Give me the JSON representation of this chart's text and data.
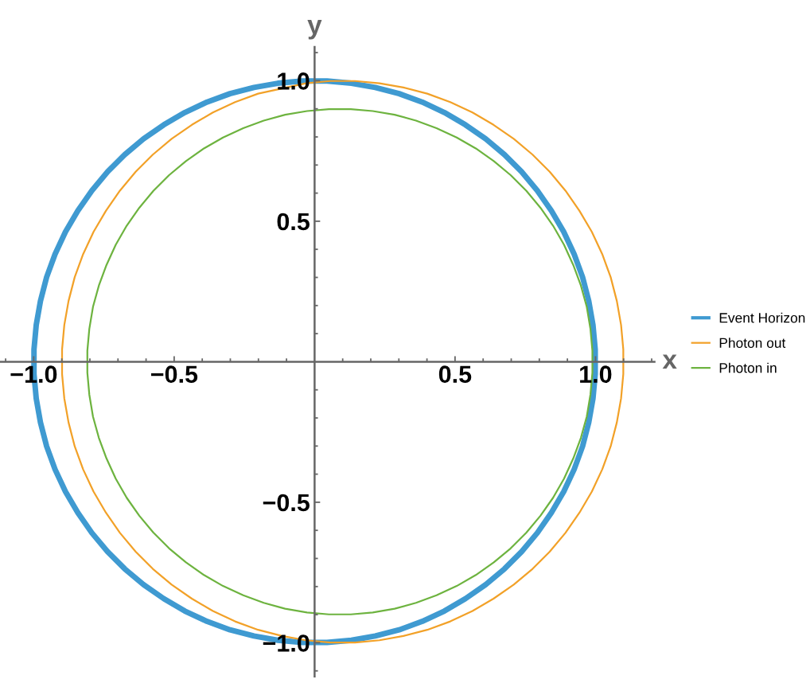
{
  "chart_data": {
    "type": "line",
    "xlabel": "x",
    "ylabel": "y",
    "xlim": [
      -1.12,
      1.21
    ],
    "ylim": [
      -1.12,
      1.12
    ],
    "xticks": [
      {
        "value": -1.1,
        "label": null
      },
      {
        "value": -1,
        "label": "−1.0"
      },
      {
        "value": -0.9,
        "label": null
      },
      {
        "value": -0.8,
        "label": null
      },
      {
        "value": -0.7,
        "label": null
      },
      {
        "value": -0.6,
        "label": null
      },
      {
        "value": -0.5,
        "label": "−0.5"
      },
      {
        "value": -0.4,
        "label": null
      },
      {
        "value": -0.3,
        "label": null
      },
      {
        "value": -0.2,
        "label": null
      },
      {
        "value": -0.1,
        "label": null
      },
      {
        "value": 0.1,
        "label": null
      },
      {
        "value": 0.2,
        "label": null
      },
      {
        "value": 0.3,
        "label": null
      },
      {
        "value": 0.4,
        "label": null
      },
      0.5,
      {
        "value": 0.6,
        "label": null
      },
      {
        "value": 0.7,
        "label": null
      },
      {
        "value": 0.8,
        "label": null
      },
      {
        "value": 0.9,
        "label": null
      },
      {
        "value": 1,
        "label": "1.0"
      },
      {
        "value": 1.1,
        "label": null
      },
      {
        "value": 1.2,
        "label": null
      }
    ],
    "yticks": [
      {
        "value": -1.1,
        "label": null
      },
      {
        "value": -1,
        "label": "−1.0"
      },
      {
        "value": -0.9,
        "label": null
      },
      {
        "value": -0.8,
        "label": null
      },
      {
        "value": -0.7,
        "label": null
      },
      {
        "value": -0.6,
        "label": null
      },
      {
        "value": -0.5,
        "label": "−0.5"
      },
      {
        "value": -0.4,
        "label": null
      },
      {
        "value": -0.3,
        "label": null
      },
      {
        "value": -0.2,
        "label": null
      },
      {
        "value": -0.1,
        "label": null
      },
      {
        "value": 0.1,
        "label": null
      },
      {
        "value": 0.2,
        "label": null
      },
      {
        "value": 0.3,
        "label": null
      },
      {
        "value": 0.4,
        "label": null
      },
      0.5,
      {
        "value": 0.6,
        "label": null
      },
      {
        "value": 0.7,
        "label": null
      },
      {
        "value": 0.8,
        "label": null
      },
      {
        "value": 0.9,
        "label": null
      },
      {
        "value": 1,
        "label": "1.0"
      },
      {
        "value": 1.1,
        "label": null
      }
    ],
    "legend": "right",
    "series": [
      {
        "name": "Event Horizon",
        "color": "#3f9ad1",
        "x": [
          0.999,
          0.991,
          0.976,
          0.954,
          0.924,
          0.887,
          0.843,
          0.793,
          0.737,
          0.676,
          0.609,
          0.537,
          0.462,
          0.383,
          0.301,
          0.216,
          0.131,
          0.044,
          -0.044,
          -0.131,
          -0.216,
          -0.301,
          -0.383,
          -0.462,
          -0.537,
          -0.609,
          -0.676,
          -0.737,
          -0.793,
          -0.843,
          -0.887,
          -0.924,
          -0.954,
          -0.976,
          -0.991,
          -0.999,
          -0.999,
          -0.991,
          -0.976,
          -0.954,
          -0.924,
          -0.887,
          -0.843,
          -0.793,
          -0.737,
          -0.676,
          -0.609,
          -0.537,
          -0.462,
          -0.383,
          -0.301,
          -0.216,
          -0.131,
          -0.044,
          0.044,
          0.131,
          0.216,
          0.301,
          0.383,
          0.462,
          0.537,
          0.609,
          0.676,
          0.737,
          0.793,
          0.843,
          0.887,
          0.924,
          0.954,
          0.976,
          0.991,
          0.999,
          0.999,
          0.991
        ],
        "values": [
          0.044,
          0.131,
          0.216,
          0.301,
          0.383,
          0.462,
          0.537,
          0.609,
          0.676,
          0.737,
          0.793,
          0.843,
          0.887,
          0.924,
          0.954,
          0.976,
          0.991,
          0.999,
          0.999,
          0.991,
          0.976,
          0.954,
          0.924,
          0.887,
          0.843,
          0.793,
          0.737,
          0.676,
          0.609,
          0.537,
          0.462,
          0.383,
          0.301,
          0.216,
          0.131,
          0.044,
          -0.044,
          -0.131,
          -0.216,
          -0.301,
          -0.383,
          -0.462,
          -0.537,
          -0.609,
          -0.676,
          -0.737,
          -0.793,
          -0.843,
          -0.887,
          -0.924,
          -0.954,
          -0.976,
          -0.991,
          -0.999,
          -0.999,
          -0.991,
          -0.976,
          -0.954,
          -0.924,
          -0.887,
          -0.843,
          -0.793,
          -0.737,
          -0.676,
          -0.609,
          -0.537,
          -0.462,
          -0.383,
          -0.301,
          -0.216,
          -0.131,
          -0.044,
          0.044,
          0.131
        ]
      },
      {
        "name": "Photon out",
        "color": "#f2a128",
        "x": [
          1.099,
          1.091,
          1.076,
          1.054,
          1.024,
          0.987,
          0.943,
          0.893,
          0.837,
          0.776,
          0.709,
          0.637,
          0.562,
          0.483,
          0.401,
          0.316,
          0.231,
          0.144,
          0.056,
          -0.031,
          -0.201,
          -0.283,
          -0.362,
          -0.437,
          -0.509,
          -0.576,
          -0.637,
          -0.693,
          -0.743,
          -0.787,
          -0.824,
          -0.854,
          -0.876,
          -0.891,
          -0.899,
          -0.899,
          -0.891,
          -0.876,
          -0.854,
          -0.824,
          -0.787,
          -0.743,
          -0.693,
          -0.637,
          -0.576,
          -0.509,
          -0.437,
          -0.362,
          -0.283,
          -0.201,
          -0.116,
          -0.031,
          0.056,
          0.144,
          0.231,
          0.316,
          0.401,
          0.483,
          0.562,
          0.637,
          0.709,
          0.776,
          0.837,
          0.893,
          0.943,
          0.987,
          1.024,
          1.054,
          1.076,
          1.091,
          1.099,
          1.099,
          1.091
        ],
        "values": [
          0.044,
          0.131,
          0.216,
          0.301,
          0.383,
          0.462,
          0.537,
          0.609,
          0.676,
          0.737,
          0.793,
          0.843,
          0.887,
          0.924,
          0.954,
          0.976,
          0.991,
          0.999,
          0.999,
          0.991,
          0.954,
          0.924,
          0.887,
          0.843,
          0.793,
          0.737,
          0.676,
          0.609,
          0.537,
          0.462,
          0.383,
          0.301,
          0.216,
          0.131,
          0.044,
          -0.044,
          -0.131,
          -0.216,
          -0.301,
          -0.383,
          -0.462,
          -0.537,
          -0.609,
          -0.676,
          -0.737,
          -0.793,
          -0.843,
          -0.887,
          -0.924,
          -0.954,
          -0.976,
          -0.991,
          -0.999,
          -0.999,
          -0.991,
          -0.976,
          -0.954,
          -0.924,
          -0.887,
          -0.843,
          -0.793,
          -0.737,
          -0.676,
          -0.609,
          -0.537,
          -0.462,
          -0.383,
          -0.301,
          -0.216,
          -0.131,
          -0.044,
          0.044,
          0.131
        ]
      },
      {
        "name": "Photon in",
        "color": "#6db33f",
        "x": [
          0.989,
          0.982,
          0.969,
          0.948,
          0.921,
          0.888,
          0.849,
          0.804,
          0.754,
          0.698,
          0.638,
          0.574,
          0.506,
          0.434,
          0.361,
          0.285,
          0.207,
          0.129,
          0.051,
          -0.027,
          -0.105,
          -0.181,
          -0.254,
          -0.326,
          -0.394,
          -0.458,
          -0.518,
          -0.574,
          -0.624,
          -0.669,
          -0.708,
          -0.741,
          -0.768,
          -0.789,
          -0.802,
          -0.809,
          -0.809,
          -0.802,
          -0.789,
          -0.768,
          -0.741,
          -0.708,
          -0.669,
          -0.624,
          -0.574,
          -0.518,
          -0.458,
          -0.394,
          -0.326,
          -0.254,
          -0.181,
          -0.105,
          -0.027,
          0.051,
          0.129,
          0.207,
          0.285,
          0.361,
          0.434,
          0.506,
          0.574,
          0.638,
          0.698,
          0.754,
          0.804,
          0.849,
          0.888,
          0.921,
          0.948,
          0.969,
          0.982,
          0.989,
          0.989,
          0.982
        ],
        "values": [
          0.039,
          0.117,
          0.195,
          0.271,
          0.344,
          0.416,
          0.484,
          0.548,
          0.608,
          0.664,
          0.714,
          0.759,
          0.798,
          0.831,
          0.858,
          0.879,
          0.892,
          0.899,
          0.899,
          0.892,
          0.879,
          0.858,
          0.831,
          0.798,
          0.759,
          0.714,
          0.664,
          0.608,
          0.548,
          0.484,
          0.416,
          0.344,
          0.271,
          0.195,
          0.117,
          0.039,
          -0.039,
          -0.117,
          -0.195,
          -0.271,
          -0.344,
          -0.416,
          -0.484,
          -0.548,
          -0.608,
          -0.664,
          -0.714,
          -0.759,
          -0.798,
          -0.831,
          -0.858,
          -0.879,
          -0.892,
          -0.899,
          -0.899,
          -0.892,
          -0.879,
          -0.858,
          -0.831,
          -0.798,
          -0.759,
          -0.714,
          -0.664,
          -0.608,
          -0.548,
          -0.484,
          -0.416,
          -0.344,
          -0.271,
          -0.195,
          -0.117,
          -0.039,
          0.039,
          0.117
        ]
      }
    ]
  }
}
